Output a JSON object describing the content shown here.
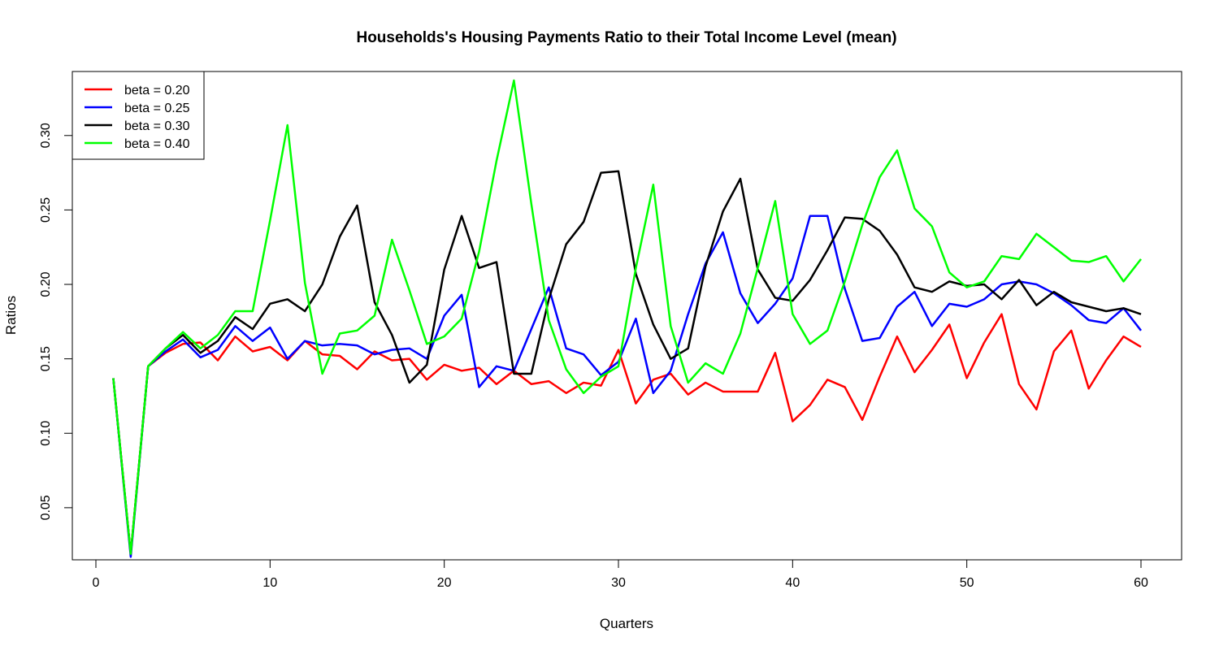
{
  "chart_data": {
    "type": "line",
    "title": "Households's Housing Payments Ratio to their Total Income Level (mean)",
    "xlabel": "Quarters",
    "ylabel": "Ratios",
    "xlim": [
      0,
      60
    ],
    "ylim": [
      0.015,
      0.343
    ],
    "x_ticks": [
      0,
      10,
      20,
      30,
      40,
      50,
      60
    ],
    "y_ticks": [
      0.05,
      0.1,
      0.15,
      0.2,
      0.25,
      0.3
    ],
    "y_tick_labels": [
      "0.05",
      "0.10",
      "0.15",
      "0.20",
      "0.25",
      "0.30"
    ],
    "grid": false,
    "legend_position": "top-left",
    "x": [
      1,
      2,
      3,
      4,
      5,
      6,
      7,
      8,
      9,
      10,
      11,
      12,
      13,
      14,
      15,
      16,
      17,
      18,
      19,
      20,
      21,
      22,
      23,
      24,
      25,
      26,
      27,
      28,
      29,
      30,
      31,
      32,
      33,
      34,
      35,
      36,
      37,
      38,
      39,
      40,
      41,
      42,
      43,
      44,
      45,
      46,
      47,
      48,
      49,
      50,
      51,
      52,
      53,
      54,
      55,
      56,
      57,
      58,
      59,
      60
    ],
    "series": [
      {
        "name": "beta = 0.20",
        "color": "#ff0000",
        "values": [
          0.137,
          0.019,
          0.145,
          0.154,
          0.16,
          0.161,
          0.149,
          0.165,
          0.155,
          0.158,
          0.149,
          0.162,
          0.153,
          0.152,
          0.143,
          0.155,
          0.149,
          0.15,
          0.136,
          0.146,
          0.142,
          0.144,
          0.133,
          0.142,
          0.133,
          0.135,
          0.127,
          0.134,
          0.132,
          0.156,
          0.12,
          0.136,
          0.14,
          0.126,
          0.134,
          0.128,
          0.128,
          0.128,
          0.154,
          0.108,
          0.119,
          0.136,
          0.131,
          0.109,
          0.138,
          0.165,
          0.141,
          0.156,
          0.173,
          0.137,
          0.161,
          0.18,
          0.133,
          0.116,
          0.155,
          0.169,
          0.13,
          0.149,
          0.165,
          0.158
        ]
      },
      {
        "name": "beta = 0.25",
        "color": "#0000ff",
        "values": [
          0.137,
          0.017,
          0.145,
          0.155,
          0.163,
          0.151,
          0.156,
          0.172,
          0.162,
          0.171,
          0.15,
          0.162,
          0.159,
          0.16,
          0.159,
          0.153,
          0.156,
          0.157,
          0.15,
          0.179,
          0.193,
          0.131,
          0.145,
          0.142,
          0.17,
          0.198,
          0.157,
          0.153,
          0.139,
          0.148,
          0.177,
          0.127,
          0.142,
          0.18,
          0.214,
          0.235,
          0.194,
          0.174,
          0.187,
          0.204,
          0.246,
          0.246,
          0.197,
          0.162,
          0.164,
          0.185,
          0.195,
          0.172,
          0.187,
          0.185,
          0.19,
          0.2,
          0.202,
          0.2,
          0.194,
          0.186,
          0.176,
          0.174,
          0.184,
          0.169
        ]
      },
      {
        "name": "beta = 0.30",
        "color": "#000000",
        "values": [
          0.137,
          0.019,
          0.145,
          0.157,
          0.166,
          0.154,
          0.162,
          0.178,
          0.17,
          0.187,
          0.19,
          0.182,
          0.2,
          0.232,
          0.253,
          0.188,
          0.166,
          0.134,
          0.146,
          0.21,
          0.246,
          0.211,
          0.215,
          0.14,
          0.14,
          0.19,
          0.227,
          0.242,
          0.275,
          0.276,
          0.207,
          0.173,
          0.15,
          0.157,
          0.212,
          0.249,
          0.271,
          0.21,
          0.191,
          0.189,
          0.203,
          0.223,
          0.245,
          0.244,
          0.236,
          0.22,
          0.198,
          0.195,
          0.202,
          0.199,
          0.2,
          0.19,
          0.203,
          0.186,
          0.195,
          0.188,
          0.185,
          0.182,
          0.184,
          0.18
        ]
      },
      {
        "name": "beta = 0.40",
        "color": "#00ff00",
        "values": [
          0.137,
          0.019,
          0.145,
          0.157,
          0.168,
          0.157,
          0.166,
          0.182,
          0.182,
          0.243,
          0.307,
          0.201,
          0.14,
          0.167,
          0.169,
          0.179,
          0.23,
          0.196,
          0.16,
          0.165,
          0.177,
          0.222,
          0.283,
          0.337,
          0.254,
          0.176,
          0.143,
          0.127,
          0.138,
          0.145,
          0.211,
          0.267,
          0.172,
          0.134,
          0.147,
          0.14,
          0.167,
          0.211,
          0.256,
          0.18,
          0.16,
          0.169,
          0.202,
          0.24,
          0.272,
          0.29,
          0.251,
          0.239,
          0.208,
          0.198,
          0.202,
          0.219,
          0.217,
          0.234,
          0.225,
          0.216,
          0.215,
          0.219,
          0.202,
          0.217
        ]
      }
    ]
  }
}
